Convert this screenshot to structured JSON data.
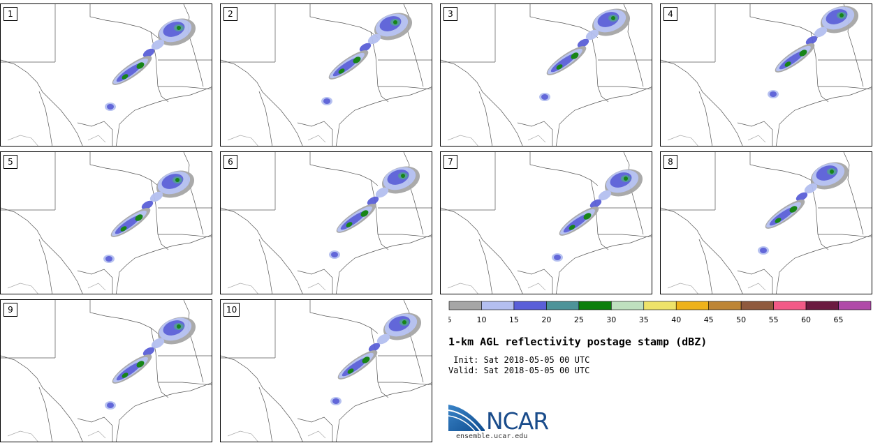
{
  "panels": [
    {
      "label": "1"
    },
    {
      "label": "2"
    },
    {
      "label": "3"
    },
    {
      "label": "4"
    },
    {
      "label": "5"
    },
    {
      "label": "6"
    },
    {
      "label": "7"
    },
    {
      "label": "8"
    },
    {
      "label": "9"
    },
    {
      "label": "10"
    }
  ],
  "colorbar": {
    "ticks": [
      "5",
      "10",
      "15",
      "20",
      "25",
      "30",
      "35",
      "40",
      "45",
      "50",
      "55",
      "60",
      "65"
    ],
    "colors": [
      "#a6a6a6",
      "#b4bff0",
      "#5a5fd8",
      "#4d9399",
      "#0b7f0b",
      "#bfe0bf",
      "#eee36a",
      "#eeb21a",
      "#bd8535",
      "#8f5a3e",
      "#f25a87",
      "#6b1a40",
      "#b04aa8"
    ]
  },
  "title": "1-km AGL reflectivity postage stamp (dBZ)",
  "init_line": " Init: Sat 2018-05-05 00 UTC",
  "valid_line": "Valid: Sat 2018-05-05 00 UTC",
  "logo": {
    "name": "NCAR",
    "url": "ensemble.ucar.edu"
  }
}
